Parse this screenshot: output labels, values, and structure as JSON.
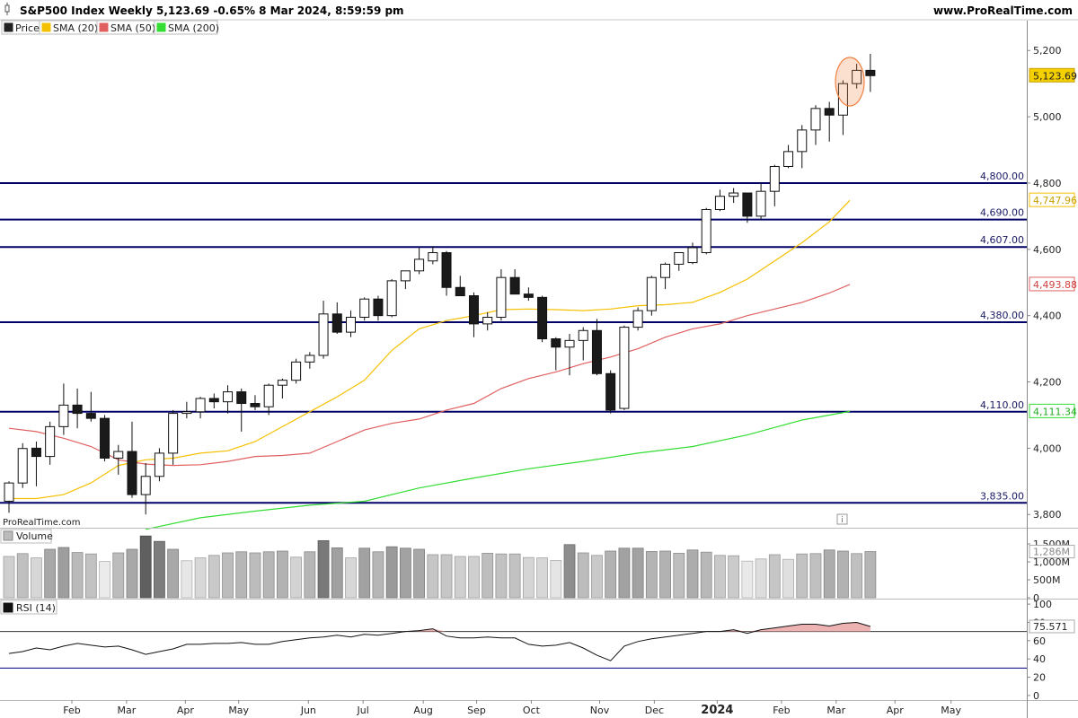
{
  "header": {
    "title": "S&P500 Index Weekly 5,123.69 -0.65% 8 Mar 2024, 8:59:59 pm",
    "site": "www.ProRealTime.com",
    "watermark": "ProRealTime.com"
  },
  "legend": [
    {
      "label": "Price",
      "color": "#222222"
    },
    {
      "label": "SMA (20)",
      "color": "#f5c000"
    },
    {
      "label": "SMA (50)",
      "color": "#e06060"
    },
    {
      "label": "SMA (200)",
      "color": "#33dd33"
    }
  ],
  "colors": {
    "up_candle": "#ffffff",
    "down_candle": "#1a1a1a",
    "level_line": "#000066",
    "sma20": "#f5c000",
    "sma50": "#e06060",
    "sma200": "#33dd33",
    "highlight": "#f08040",
    "rsi_line": "#111111",
    "rsi_band": "#000080"
  },
  "chart_data": {
    "type": "candlestick",
    "title": "S&P500 Index Weekly",
    "last_price": "5,123.69",
    "change": "-0.65%",
    "timestamp": "8 Mar 2024, 8:59:59 pm",
    "price_ylim": [
      3760,
      5290
    ],
    "y_ticks": [
      "5,200",
      "5,000",
      "4,800",
      "4,600",
      "4,400",
      "4,200",
      "4,000",
      "3,800"
    ],
    "y_tick_values": [
      5200,
      5000,
      4800,
      4600,
      4400,
      4200,
      4000,
      3800
    ],
    "x_labels": [
      {
        "label": "Feb",
        "week": 4.6
      },
      {
        "label": "Mar",
        "week": 8.6
      },
      {
        "label": "Apr",
        "week": 12.9
      },
      {
        "label": "May",
        "week": 16.8
      },
      {
        "label": "Jun",
        "week": 21.9
      },
      {
        "label": "Jul",
        "week": 25.9
      },
      {
        "label": "Aug",
        "week": 30.3
      },
      {
        "label": "Sep",
        "week": 34.2
      },
      {
        "label": "Oct",
        "week": 38.2
      },
      {
        "label": "Nov",
        "week": 43.2
      },
      {
        "label": "Dec",
        "week": 47.2
      },
      {
        "label": "2024",
        "week": 51.8,
        "bold": true
      },
      {
        "label": "Feb",
        "week": 56.5
      },
      {
        "label": "Mar",
        "week": 60.5
      },
      {
        "label": "Apr",
        "week": 64.8
      },
      {
        "label": "May",
        "week": 68.9
      }
    ],
    "candles": [
      {
        "o": 3840,
        "h": 3900,
        "l": 3805,
        "c": 3895
      },
      {
        "o": 3895,
        "h": 4015,
        "l": 3880,
        "c": 3999
      },
      {
        "o": 4000,
        "h": 4020,
        "l": 3885,
        "c": 3975
      },
      {
        "o": 3975,
        "h": 4080,
        "l": 3950,
        "c": 4065
      },
      {
        "o": 4065,
        "h": 4195,
        "l": 4040,
        "c": 4130
      },
      {
        "o": 4130,
        "h": 4180,
        "l": 4060,
        "c": 4105
      },
      {
        "o": 4105,
        "h": 4170,
        "l": 4080,
        "c": 4090
      },
      {
        "o": 4090,
        "h": 4100,
        "l": 3960,
        "c": 3970
      },
      {
        "o": 3970,
        "h": 4010,
        "l": 3920,
        "c": 3990
      },
      {
        "o": 3990,
        "h": 4080,
        "l": 3850,
        "c": 3860
      },
      {
        "o": 3860,
        "h": 3955,
        "l": 3800,
        "c": 3915
      },
      {
        "o": 3915,
        "h": 4000,
        "l": 3900,
        "c": 3985
      },
      {
        "o": 3985,
        "h": 4115,
        "l": 3950,
        "c": 4105
      },
      {
        "o": 4105,
        "h": 4140,
        "l": 4090,
        "c": 4110
      },
      {
        "o": 4110,
        "h": 4155,
        "l": 4090,
        "c": 4150
      },
      {
        "o": 4150,
        "h": 4165,
        "l": 4120,
        "c": 4140
      },
      {
        "o": 4140,
        "h": 4190,
        "l": 4105,
        "c": 4170
      },
      {
        "o": 4170,
        "h": 4180,
        "l": 4050,
        "c": 4135
      },
      {
        "o": 4135,
        "h": 4160,
        "l": 4115,
        "c": 4125
      },
      {
        "o": 4125,
        "h": 4195,
        "l": 4100,
        "c": 4190
      },
      {
        "o": 4190,
        "h": 4210,
        "l": 4150,
        "c": 4205
      },
      {
        "o": 4205,
        "h": 4270,
        "l": 4195,
        "c": 4260
      },
      {
        "o": 4260,
        "h": 4290,
        "l": 4240,
        "c": 4280
      },
      {
        "o": 4280,
        "h": 4445,
        "l": 4270,
        "c": 4405
      },
      {
        "o": 4405,
        "h": 4440,
        "l": 4345,
        "c": 4350
      },
      {
        "o": 4350,
        "h": 4415,
        "l": 4335,
        "c": 4395
      },
      {
        "o": 4395,
        "h": 4455,
        "l": 4385,
        "c": 4450
      },
      {
        "o": 4450,
        "h": 4460,
        "l": 4385,
        "c": 4400
      },
      {
        "o": 4400,
        "h": 4510,
        "l": 4395,
        "c": 4505
      },
      {
        "o": 4505,
        "h": 4530,
        "l": 4480,
        "c": 4535
      },
      {
        "o": 4535,
        "h": 4605,
        "l": 4525,
        "c": 4570
      },
      {
        "o": 4565,
        "h": 4610,
        "l": 4555,
        "c": 4590
      },
      {
        "o": 4590,
        "h": 4595,
        "l": 4460,
        "c": 4485
      },
      {
        "o": 4485,
        "h": 4520,
        "l": 4460,
        "c": 4460
      },
      {
        "o": 4460,
        "h": 4470,
        "l": 4335,
        "c": 4375
      },
      {
        "o": 4375,
        "h": 4410,
        "l": 4355,
        "c": 4395
      },
      {
        "o": 4395,
        "h": 4540,
        "l": 4385,
        "c": 4515
      },
      {
        "o": 4515,
        "h": 4540,
        "l": 4470,
        "c": 4465
      },
      {
        "o": 4465,
        "h": 4485,
        "l": 4445,
        "c": 4455
      },
      {
        "o": 4455,
        "h": 4460,
        "l": 4320,
        "c": 4330
      },
      {
        "o": 4330,
        "h": 4335,
        "l": 4235,
        "c": 4305
      },
      {
        "o": 4305,
        "h": 4345,
        "l": 4220,
        "c": 4325
      },
      {
        "o": 4325,
        "h": 4365,
        "l": 4265,
        "c": 4355
      },
      {
        "o": 4355,
        "h": 4390,
        "l": 4220,
        "c": 4225
      },
      {
        "o": 4225,
        "h": 4235,
        "l": 4105,
        "c": 4115
      },
      {
        "o": 4120,
        "h": 4370,
        "l": 4115,
        "c": 4365
      },
      {
        "o": 4365,
        "h": 4425,
        "l": 4355,
        "c": 4415
      },
      {
        "o": 4415,
        "h": 4520,
        "l": 4400,
        "c": 4515
      },
      {
        "o": 4515,
        "h": 4560,
        "l": 4480,
        "c": 4555
      },
      {
        "o": 4555,
        "h": 4580,
        "l": 4535,
        "c": 4590
      },
      {
        "o": 4560,
        "h": 4620,
        "l": 4555,
        "c": 4605
      },
      {
        "o": 4590,
        "h": 4725,
        "l": 4585,
        "c": 4720
      },
      {
        "o": 4720,
        "h": 4780,
        "l": 4715,
        "c": 4760
      },
      {
        "o": 4760,
        "h": 4785,
        "l": 4740,
        "c": 4770
      },
      {
        "o": 4770,
        "h": 4770,
        "l": 4680,
        "c": 4700
      },
      {
        "o": 4700,
        "h": 4800,
        "l": 4690,
        "c": 4775
      },
      {
        "o": 4775,
        "h": 4855,
        "l": 4730,
        "c": 4850
      },
      {
        "o": 4850,
        "h": 4915,
        "l": 4845,
        "c": 4895
      },
      {
        "o": 4895,
        "h": 4975,
        "l": 4845,
        "c": 4960
      },
      {
        "o": 4960,
        "h": 5035,
        "l": 4915,
        "c": 5025
      },
      {
        "o": 5025,
        "h": 5045,
        "l": 4925,
        "c": 5005
      },
      {
        "o": 5005,
        "h": 5110,
        "l": 4945,
        "c": 5100
      },
      {
        "o": 5100,
        "h": 5160,
        "l": 5085,
        "c": 5140
      },
      {
        "o": 5140,
        "h": 5190,
        "l": 5075,
        "c": 5124
      }
    ],
    "levels": [
      {
        "value": 4800,
        "label": "4,800.00"
      },
      {
        "value": 4690,
        "label": "4,690.00"
      },
      {
        "value": 4607,
        "label": "4,607.00"
      },
      {
        "value": 4380,
        "label": "4,380.00"
      },
      {
        "value": 4110,
        "label": "4,110.00"
      },
      {
        "value": 3835,
        "label": "3,835.00"
      }
    ],
    "sma20": [
      [
        0,
        3848
      ],
      [
        2,
        3848
      ],
      [
        4,
        3860
      ],
      [
        6,
        3895
      ],
      [
        8,
        3948
      ],
      [
        10,
        3965
      ],
      [
        12,
        3970
      ],
      [
        14,
        3985
      ],
      [
        16,
        3992
      ],
      [
        18,
        4020
      ],
      [
        20,
        4065
      ],
      [
        22,
        4110
      ],
      [
        24,
        4155
      ],
      [
        26,
        4205
      ],
      [
        28,
        4295
      ],
      [
        30,
        4360
      ],
      [
        32,
        4385
      ],
      [
        34,
        4400
      ],
      [
        36,
        4418
      ],
      [
        38,
        4420
      ],
      [
        40,
        4418
      ],
      [
        42,
        4415
      ],
      [
        44,
        4420
      ],
      [
        46,
        4430
      ],
      [
        48,
        4433
      ],
      [
        50,
        4440
      ],
      [
        52,
        4470
      ],
      [
        54,
        4510
      ],
      [
        56,
        4565
      ],
      [
        58,
        4620
      ],
      [
        60,
        4683
      ],
      [
        61.5,
        4748
      ]
    ],
    "sma50": [
      [
        0,
        4060
      ],
      [
        2,
        4050
      ],
      [
        4,
        4030
      ],
      [
        6,
        4005
      ],
      [
        8,
        3965
      ],
      [
        10,
        3952
      ],
      [
        12,
        3948
      ],
      [
        14,
        3950
      ],
      [
        16,
        3960
      ],
      [
        18,
        3975
      ],
      [
        20,
        3978
      ],
      [
        22,
        3985
      ],
      [
        24,
        4020
      ],
      [
        26,
        4055
      ],
      [
        28,
        4075
      ],
      [
        30,
        4088
      ],
      [
        32,
        4115
      ],
      [
        34,
        4135
      ],
      [
        36,
        4180
      ],
      [
        38,
        4210
      ],
      [
        40,
        4230
      ],
      [
        42,
        4255
      ],
      [
        44,
        4275
      ],
      [
        46,
        4300
      ],
      [
        48,
        4335
      ],
      [
        50,
        4360
      ],
      [
        52,
        4375
      ],
      [
        54,
        4400
      ],
      [
        56,
        4420
      ],
      [
        58,
        4440
      ],
      [
        60,
        4468
      ],
      [
        61.5,
        4494
      ]
    ],
    "sma200": [
      [
        10,
        3755
      ],
      [
        14,
        3790
      ],
      [
        18,
        3810
      ],
      [
        22,
        3828
      ],
      [
        26,
        3840
      ],
      [
        30,
        3880
      ],
      [
        34,
        3910
      ],
      [
        38,
        3938
      ],
      [
        42,
        3960
      ],
      [
        46,
        3985
      ],
      [
        50,
        4005
      ],
      [
        54,
        4040
      ],
      [
        58,
        4085
      ],
      [
        61.5,
        4111
      ]
    ],
    "sma_labels": [
      {
        "name": "SMA (20)",
        "value": "4,747.96",
        "y": 4748
      },
      {
        "name": "SMA (50)",
        "value": "4,493.88",
        "y": 4494
      },
      {
        "name": "SMA (200)",
        "value": "4,111.34",
        "y": 4111
      }
    ],
    "price_label": {
      "value": "5,123.69",
      "y": 5124
    },
    "highlight_week": 61.5,
    "volume": {
      "label": "Volume",
      "ylim": [
        0,
        1900
      ],
      "y_ticks": [
        "1,500M",
        "1,000M",
        "500M",
        "0"
      ],
      "y_tick_values": [
        1500,
        1000,
        500,
        0
      ],
      "last_label": "1,286M",
      "values": [
        1150,
        1230,
        1110,
        1350,
        1400,
        1260,
        1220,
        1010,
        1250,
        1350,
        1720,
        1570,
        1350,
        1030,
        1110,
        1180,
        1250,
        1280,
        1250,
        1280,
        1300,
        1130,
        1280,
        1590,
        1390,
        1110,
        1380,
        1280,
        1420,
        1380,
        1350,
        1200,
        1200,
        1150,
        1150,
        1240,
        1220,
        1220,
        1120,
        1110,
        1040,
        1480,
        1250,
        1180,
        1300,
        1380,
        1380,
        1290,
        1300,
        1240,
        1330,
        1270,
        1180,
        1170,
        1020,
        1080,
        1200,
        1070,
        1220,
        1230,
        1330,
        1300,
        1230,
        1286
      ]
    },
    "rsi": {
      "label": "RSI (14)",
      "ylim": [
        -5,
        105
      ],
      "y_ticks": [
        "100",
        "80",
        "60",
        "40",
        "20",
        "0"
      ],
      "y_tick_values": [
        100,
        80,
        60,
        40,
        20,
        0
      ],
      "last_label": "75.571",
      "overbought": 70,
      "oversold": 30,
      "values": [
        46,
        48,
        52,
        50,
        54,
        57,
        55,
        53,
        54,
        50,
        45,
        48,
        51,
        56,
        56,
        57,
        57,
        58,
        56,
        56,
        59,
        61,
        63,
        64,
        66,
        64,
        67,
        66,
        68,
        70,
        71,
        73,
        65,
        63,
        63,
        64,
        63,
        63,
        56,
        54,
        55,
        58,
        52,
        44,
        38,
        54,
        59,
        62,
        64,
        66,
        68,
        70,
        70,
        72,
        68,
        72,
        74,
        76,
        78,
        78,
        76,
        79,
        80,
        75.571
      ]
    }
  }
}
